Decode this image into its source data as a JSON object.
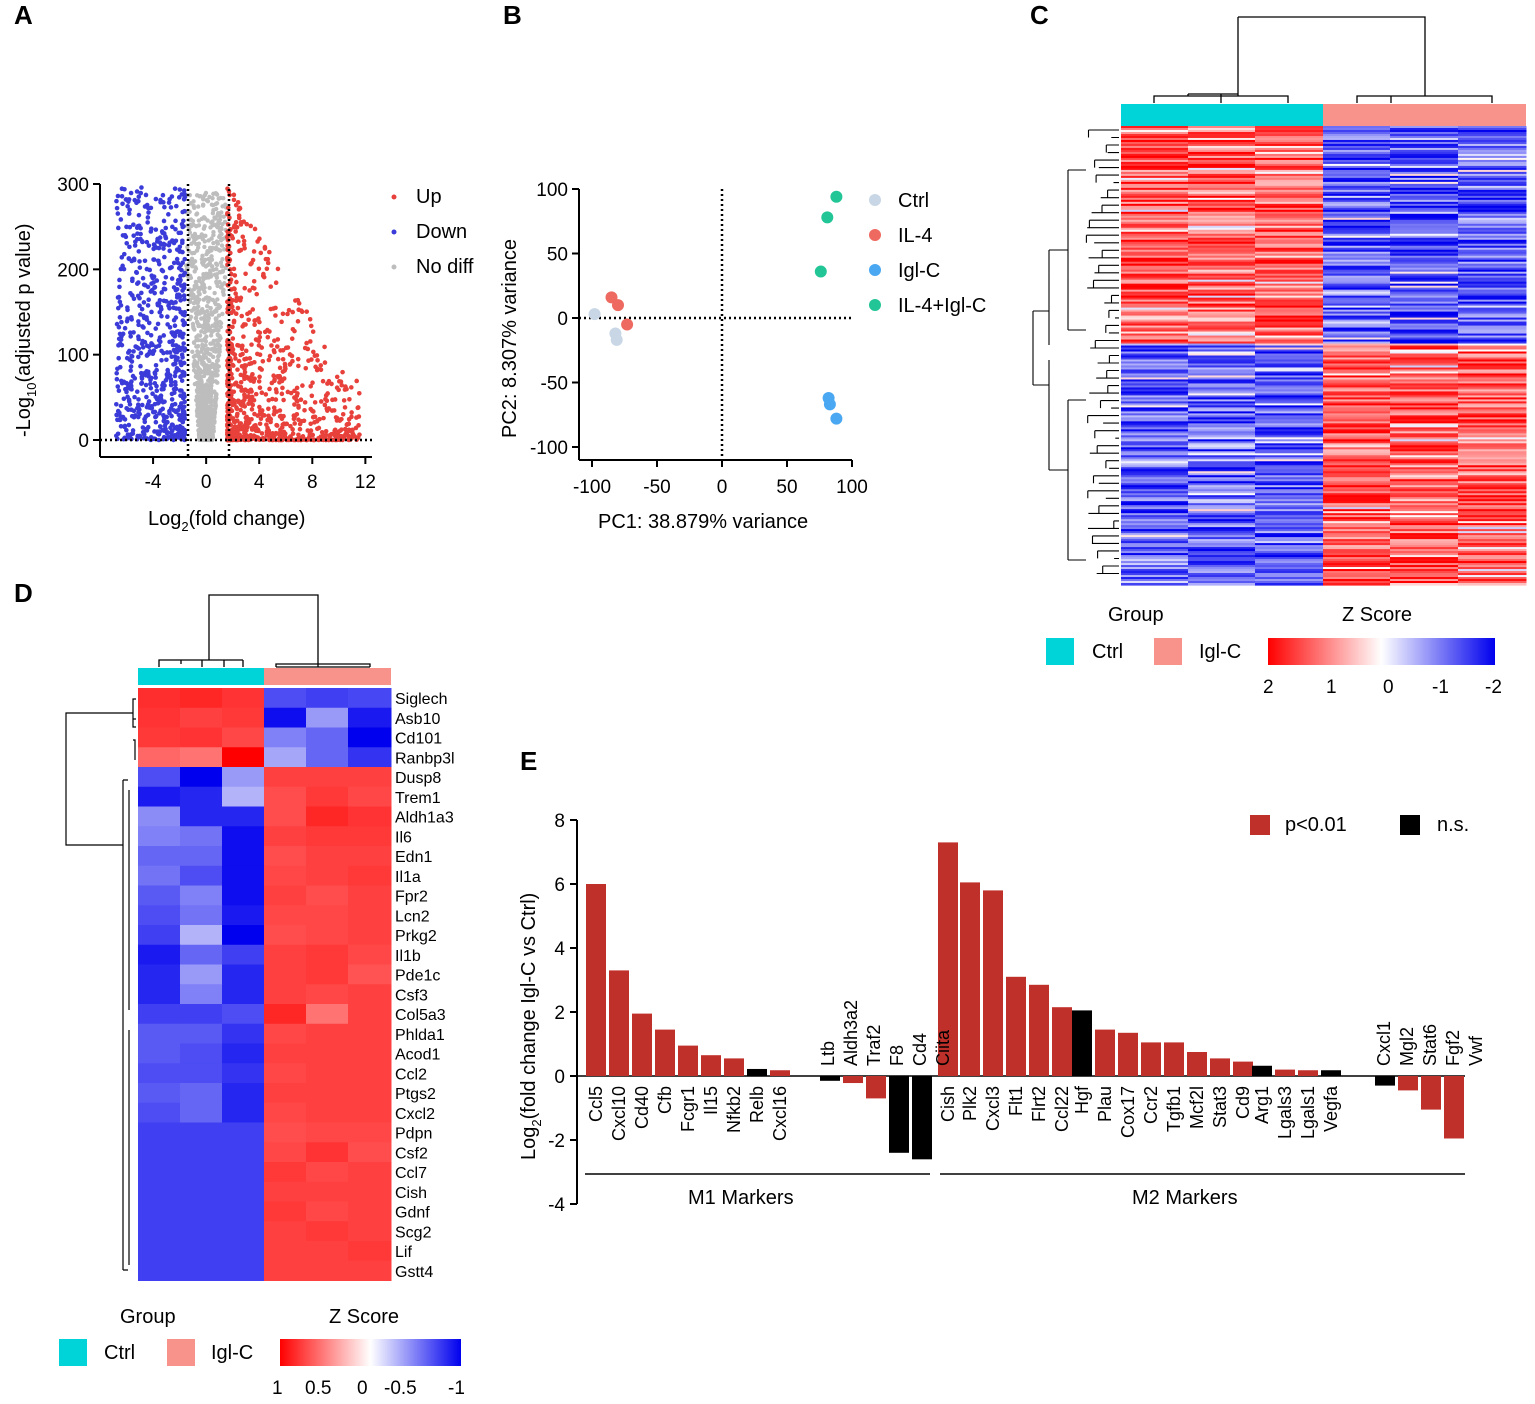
{
  "panels": [
    "A",
    "B",
    "C",
    "D",
    "E"
  ],
  "colors": {
    "up": "#e8403a",
    "down": "#3a3bd8",
    "nodiff": "#bdbdbd",
    "ctrl": "#c8d6e6",
    "il4": "#ee6a60",
    "iglc": "#4aa8f2",
    "combo": "#22c596",
    "group_ctrl": "#00d4d8",
    "group_iglc": "#f7938a",
    "sig": "#c0302a",
    "ns": "#000000"
  },
  "volcano": {
    "type": "scatter",
    "xlabel": "Log",
    "xlabel_sub": "2",
    "xlabel_rest": "(fold change)",
    "ylabel": "-Log",
    "ylabel_sub": "10",
    "ylabel_rest": "(adjusted p value)",
    "xticks": [
      "-4",
      "0",
      "4",
      "8",
      "12"
    ],
    "yticks": [
      "0",
      "100",
      "200",
      "300"
    ],
    "xlim": [
      -8,
      12.5
    ],
    "ylim": [
      0,
      300
    ],
    "thresholds": [
      -1.5,
      1.5
    ],
    "legend": [
      "Up",
      "Down",
      "No diff"
    ]
  },
  "pca": {
    "type": "scatter",
    "xlabel": "PC1: 38.879% variance",
    "ylabel": "PC2: 8.307% variance",
    "xticks": [
      "-100",
      "-50",
      "0",
      "50",
      "100"
    ],
    "yticks": [
      "100",
      "50",
      "0",
      "-50",
      "-100"
    ],
    "xlim": [
      -105,
      100
    ],
    "ylim": [
      -105,
      100
    ],
    "legend": [
      "Ctrl",
      "IL-4",
      "Igl-C",
      "IL-4+Igl-C"
    ],
    "groups": [
      {
        "name": "Ctrl",
        "points": [
          [
            -98,
            3
          ],
          [
            -82,
            -12
          ],
          [
            -81,
            -17
          ]
        ]
      },
      {
        "name": "IL-4",
        "points": [
          [
            -85,
            16
          ],
          [
            -80,
            10
          ],
          [
            -73,
            -5
          ]
        ]
      },
      {
        "name": "Igl-C",
        "points": [
          [
            82,
            -62
          ],
          [
            83,
            -67
          ],
          [
            88,
            -78
          ]
        ]
      },
      {
        "name": "IL-4+Igl-C",
        "points": [
          [
            88,
            94
          ],
          [
            81,
            78
          ],
          [
            76,
            36
          ]
        ]
      }
    ]
  },
  "heatmap_c": {
    "group_title": "Group",
    "zscore_title": "Z Score",
    "group_labels": [
      "Ctrl",
      "Igl-C"
    ],
    "scale_ticks": [
      "2",
      "1",
      "0",
      "-1",
      "-2"
    ]
  },
  "heatmap_d": {
    "group_title": "Group",
    "zscore_title": "Z Score",
    "group_labels": [
      "Ctrl",
      "Igl-C"
    ],
    "scale_ticks": [
      "1",
      "0.5",
      "0",
      "-0.5",
      "-1"
    ],
    "genes": [
      {
        "name": "Siglech",
        "red": false,
        "z": [
          0.82,
          0.85,
          0.8,
          -0.7,
          -0.75,
          -0.72
        ]
      },
      {
        "name": "Asb10",
        "red": false,
        "z": [
          0.8,
          0.75,
          0.78,
          -0.95,
          -0.4,
          -0.9
        ]
      },
      {
        "name": "Cd101",
        "red": false,
        "z": [
          0.78,
          0.8,
          0.72,
          -0.5,
          -0.6,
          -1.0
        ]
      },
      {
        "name": "Ranbp3l",
        "red": false,
        "z": [
          0.6,
          0.55,
          1.0,
          -0.35,
          -0.6,
          -0.8
        ]
      },
      {
        "name": "Dusp8",
        "red": false,
        "z": [
          -0.7,
          -1.0,
          -0.4,
          0.75,
          0.75,
          0.75
        ]
      },
      {
        "name": "Trem1",
        "red": false,
        "z": [
          -0.9,
          -0.85,
          -0.3,
          0.7,
          0.78,
          0.72
        ]
      },
      {
        "name": "Aldh1a3",
        "red": false,
        "z": [
          -0.45,
          -0.85,
          -0.85,
          0.7,
          0.85,
          0.8
        ]
      },
      {
        "name": "Il6",
        "red": true,
        "z": [
          -0.5,
          -0.55,
          -0.95,
          0.75,
          0.78,
          0.78
        ]
      },
      {
        "name": "Edn1",
        "red": false,
        "z": [
          -0.6,
          -0.6,
          -0.95,
          0.7,
          0.75,
          0.75
        ]
      },
      {
        "name": "Il1a",
        "red": true,
        "z": [
          -0.55,
          -0.7,
          -0.95,
          0.72,
          0.75,
          0.78
        ]
      },
      {
        "name": "Fpr2",
        "red": false,
        "z": [
          -0.65,
          -0.5,
          -0.95,
          0.75,
          0.7,
          0.75
        ]
      },
      {
        "name": "Lcn2",
        "red": false,
        "z": [
          -0.7,
          -0.55,
          -0.9,
          0.72,
          0.72,
          0.75
        ]
      },
      {
        "name": "Prkg2",
        "red": false,
        "z": [
          -0.75,
          -0.3,
          -1.0,
          0.7,
          0.72,
          0.75
        ]
      },
      {
        "name": "Il1b",
        "red": true,
        "z": [
          -0.9,
          -0.6,
          -0.75,
          0.75,
          0.78,
          0.72
        ]
      },
      {
        "name": "Pde1c",
        "red": false,
        "z": [
          -0.85,
          -0.4,
          -0.85,
          0.75,
          0.78,
          0.68
        ]
      },
      {
        "name": "Csf3",
        "red": true,
        "z": [
          -0.85,
          -0.5,
          -0.85,
          0.75,
          0.72,
          0.75
        ]
      },
      {
        "name": "Col5a3",
        "red": false,
        "z": [
          -0.75,
          -0.75,
          -0.7,
          0.85,
          0.55,
          0.75
        ]
      },
      {
        "name": "Phlda1",
        "red": false,
        "z": [
          -0.65,
          -0.65,
          -0.8,
          0.72,
          0.75,
          0.75
        ]
      },
      {
        "name": "Acod1",
        "red": false,
        "z": [
          -0.65,
          -0.7,
          -0.85,
          0.75,
          0.75,
          0.75
        ]
      },
      {
        "name": "Ccl2",
        "red": true,
        "z": [
          -0.7,
          -0.7,
          -0.8,
          0.72,
          0.75,
          0.75
        ]
      },
      {
        "name": "Ptgs2",
        "red": false,
        "z": [
          -0.65,
          -0.6,
          -0.85,
          0.75,
          0.75,
          0.75
        ]
      },
      {
        "name": "Cxcl2",
        "red": true,
        "z": [
          -0.7,
          -0.6,
          -0.85,
          0.72,
          0.75,
          0.75
        ]
      },
      {
        "name": "Pdpn",
        "red": false,
        "z": [
          -0.75,
          -0.75,
          -0.75,
          0.7,
          0.72,
          0.72
        ]
      },
      {
        "name": "Csf2",
        "red": true,
        "z": [
          -0.75,
          -0.75,
          -0.75,
          0.72,
          0.8,
          0.7
        ]
      },
      {
        "name": "Ccl7",
        "red": true,
        "z": [
          -0.75,
          -0.75,
          -0.75,
          0.78,
          0.72,
          0.75
        ]
      },
      {
        "name": "Cish",
        "red": false,
        "z": [
          -0.75,
          -0.75,
          -0.75,
          0.75,
          0.75,
          0.75
        ]
      },
      {
        "name": "Gdnf",
        "red": false,
        "z": [
          -0.75,
          -0.75,
          -0.75,
          0.78,
          0.72,
          0.75
        ]
      },
      {
        "name": "Scg2",
        "red": false,
        "z": [
          -0.75,
          -0.75,
          -0.75,
          0.75,
          0.78,
          0.75
        ]
      },
      {
        "name": "Lif",
        "red": false,
        "z": [
          -0.75,
          -0.75,
          -0.75,
          0.75,
          0.75,
          0.78
        ]
      },
      {
        "name": "Gstt4",
        "red": false,
        "z": [
          -0.75,
          -0.75,
          -0.75,
          0.75,
          0.75,
          0.75
        ]
      }
    ]
  },
  "chart_data": {
    "type": "bar",
    "ylabel": "Log",
    "ylabel_sub": "2",
    "ylabel_rest": "(fold change Igl-C vs Ctrl)",
    "ylim": [
      -4,
      8
    ],
    "yticks": [
      "8",
      "6",
      "4",
      "2",
      "0",
      "-2",
      "-4"
    ],
    "legend": [
      "p<0.01",
      "n.s."
    ],
    "groups": [
      "M1 Markers",
      "M2 Markers"
    ],
    "bars": [
      {
        "label": "Ccl5",
        "value": 6.0,
        "sig": true
      },
      {
        "label": "Cxcl10",
        "value": 3.3,
        "sig": true
      },
      {
        "label": "Cd40",
        "value": 1.95,
        "sig": true
      },
      {
        "label": "Cfb",
        "value": 1.45,
        "sig": true
      },
      {
        "label": "Fcgr1",
        "value": 0.95,
        "sig": true
      },
      {
        "label": "Il15",
        "value": 0.65,
        "sig": true
      },
      {
        "label": "Nfkb2",
        "value": 0.55,
        "sig": true
      },
      {
        "label": "Relb",
        "value": 0.22,
        "sig": false
      },
      {
        "label": "Cxcl16",
        "value": 0.18,
        "sig": true
      },
      {
        "label": "Ltb",
        "value": -0.15,
        "sig": false
      },
      {
        "label": "Aldh3a2",
        "value": -0.22,
        "sig": true
      },
      {
        "label": "Traf2",
        "value": -0.7,
        "sig": true
      },
      {
        "label": "F8",
        "value": -2.4,
        "sig": false
      },
      {
        "label": "Cd4",
        "value": -2.6,
        "sig": false
      },
      {
        "label": "Ciita",
        "value": 0,
        "sig": false
      },
      {
        "label": "Cish",
        "value": 7.3,
        "sig": true
      },
      {
        "label": "Plk2",
        "value": 6.05,
        "sig": true
      },
      {
        "label": "Cxcl3",
        "value": 5.8,
        "sig": true
      },
      {
        "label": "Flt1",
        "value": 3.1,
        "sig": true
      },
      {
        "label": "Flrt2",
        "value": 2.85,
        "sig": true
      },
      {
        "label": "Ccl22",
        "value": 2.15,
        "sig": true
      },
      {
        "label": "Hgf",
        "value": 2.05,
        "sig": false
      },
      {
        "label": "Plau",
        "value": 1.45,
        "sig": true
      },
      {
        "label": "Cox17",
        "value": 1.35,
        "sig": true
      },
      {
        "label": "Ccr2",
        "value": 1.05,
        "sig": true
      },
      {
        "label": "Tgfb1",
        "value": 1.05,
        "sig": true
      },
      {
        "label": "Mcf2l",
        "value": 0.75,
        "sig": true
      },
      {
        "label": "Stat3",
        "value": 0.55,
        "sig": true
      },
      {
        "label": "Cd9",
        "value": 0.45,
        "sig": true
      },
      {
        "label": "Arg1",
        "value": 0.32,
        "sig": false
      },
      {
        "label": "Lgals3",
        "value": 0.2,
        "sig": true
      },
      {
        "label": "Lgals1",
        "value": 0.18,
        "sig": true
      },
      {
        "label": "Vegfa",
        "value": 0.18,
        "sig": false
      },
      {
        "label": "Cxcl1",
        "value": -0.3,
        "sig": false
      },
      {
        "label": "Mgl2",
        "value": -0.45,
        "sig": true
      },
      {
        "label": "Stat6",
        "value": -1.05,
        "sig": true
      },
      {
        "label": "Fgf2",
        "value": -1.95,
        "sig": true
      },
      {
        "label": "Vwf",
        "value": 0,
        "sig": true
      }
    ]
  }
}
